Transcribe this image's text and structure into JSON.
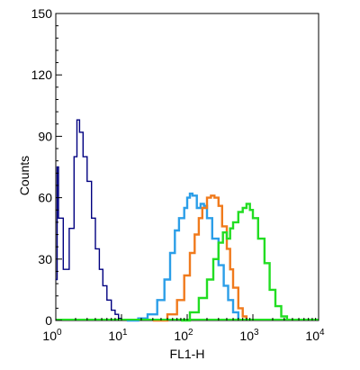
{
  "chart_data": {
    "type": "line",
    "title": "",
    "xlabel": "FL1-H",
    "ylabel": "Counts",
    "xscale": "log",
    "xlim": [
      1,
      10000
    ],
    "ylim": [
      0,
      150
    ],
    "yticks": [
      0,
      30,
      60,
      90,
      120,
      150
    ],
    "xticks": [
      {
        "value": 1,
        "base": "10",
        "exp": "0"
      },
      {
        "value": 10,
        "base": "10",
        "exp": "1"
      },
      {
        "value": 100,
        "base": "10",
        "exp": "2"
      },
      {
        "value": 1000,
        "base": "10",
        "exp": "3"
      },
      {
        "value": 10000,
        "base": "10",
        "exp": "4"
      }
    ],
    "grid": false,
    "legend": "none",
    "series": [
      {
        "color": "#000080",
        "x": [
          1.0,
          1.05,
          1.1,
          1.3,
          1.6,
          1.9,
          2.1,
          2.3,
          2.6,
          3.0,
          3.5,
          4.0,
          4.6,
          5.2,
          6.0,
          7.0,
          8.0,
          9.0,
          10.0,
          11.5
        ],
        "y": [
          20,
          75,
          50,
          25,
          45,
          80,
          98,
          92,
          80,
          68,
          50,
          35,
          25,
          17,
          10,
          5,
          3,
          1,
          0.5,
          0
        ]
      },
      {
        "color": "#2b9ee8",
        "x": [
          12,
          18,
          25,
          35,
          45,
          55,
          65,
          75,
          90,
          100,
          110,
          120,
          140,
          160,
          180,
          200,
          240,
          300,
          360,
          420,
          500,
          600
        ],
        "y": [
          0,
          1,
          3,
          10,
          20,
          33,
          44,
          50,
          55,
          60,
          62,
          61,
          55,
          57,
          56,
          50,
          40,
          27,
          17,
          10,
          4,
          0
        ]
      },
      {
        "color": "#f07a1c",
        "x": [
          30,
          50,
          70,
          90,
          110,
          130,
          150,
          170,
          200,
          230,
          260,
          300,
          340,
          400,
          450,
          500,
          600,
          700,
          800
        ],
        "y": [
          0,
          3,
          10,
          22,
          33,
          42,
          50,
          55,
          60,
          61,
          60,
          56,
          46,
          35,
          25,
          16,
          6,
          2,
          0
        ]
      },
      {
        "color": "#22dd22",
        "x": [
          80,
          110,
          150,
          200,
          250,
          300,
          350,
          400,
          450,
          500,
          600,
          700,
          800,
          900,
          1000,
          1200,
          1500,
          1800,
          2200,
          2700,
          3300
        ],
        "y": [
          0,
          4,
          11,
          20,
          30,
          38,
          43,
          40,
          45,
          48,
          53,
          55,
          57,
          54,
          50,
          40,
          28,
          15,
          7,
          2,
          0
        ]
      }
    ]
  }
}
